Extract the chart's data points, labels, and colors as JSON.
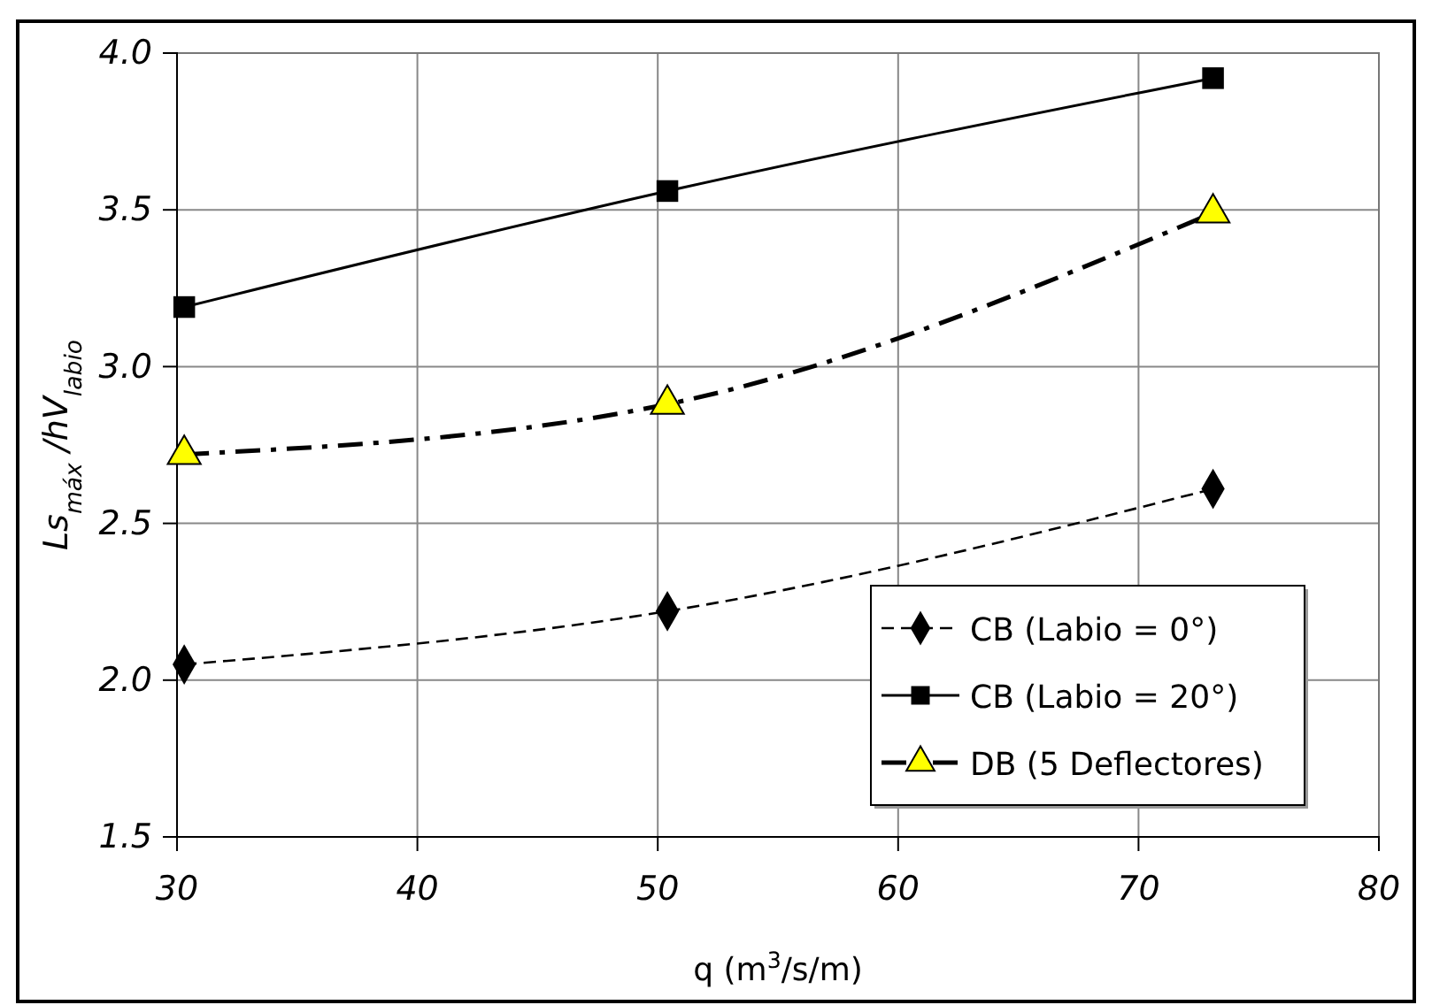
{
  "chart_data": {
    "type": "line",
    "xlabel": "q (m$^{3}$/s/m)",
    "ylabel": "Ls$_{máx}$ /hV$_{labio}$",
    "xlim": [
      30,
      80
    ],
    "xticks": [
      30,
      40,
      50,
      60,
      70,
      80
    ],
    "ylim": [
      1.5,
      4.0
    ],
    "yticks": [
      {
        "value": 1.5,
        "label": "1.5"
      },
      {
        "value": 2.0,
        "label": "2.0"
      },
      {
        "value": 2.5,
        "label": "2.5"
      },
      {
        "value": 3.0,
        "label": "3.0"
      },
      {
        "value": 3.5,
        "label": "3.5"
      },
      {
        "value": 4.0,
        "label": "4.0"
      }
    ],
    "grid": true,
    "legend": "bottom right",
    "series": [
      {
        "name": "CB (Labio = 0°)",
        "color": "#000000",
        "marker": "diamond",
        "line_style": "dashed",
        "x": [
          30.3,
          50.4,
          73.1
        ],
        "values": [
          2.05,
          2.22,
          2.61
        ]
      },
      {
        "name": "CB (Labio = 20°)",
        "color": "#000000",
        "marker": "square",
        "line_style": "solid",
        "x": [
          30.3,
          50.4,
          73.1
        ],
        "values": [
          3.19,
          3.56,
          3.92
        ]
      },
      {
        "name": "DB (5 Deflectores)",
        "color": "#ffff00",
        "marker": "triangle",
        "line_style": "dashed",
        "x": [
          30.3,
          50.4,
          73.1
        ],
        "values": [
          2.72,
          2.88,
          3.49
        ]
      }
    ]
  }
}
